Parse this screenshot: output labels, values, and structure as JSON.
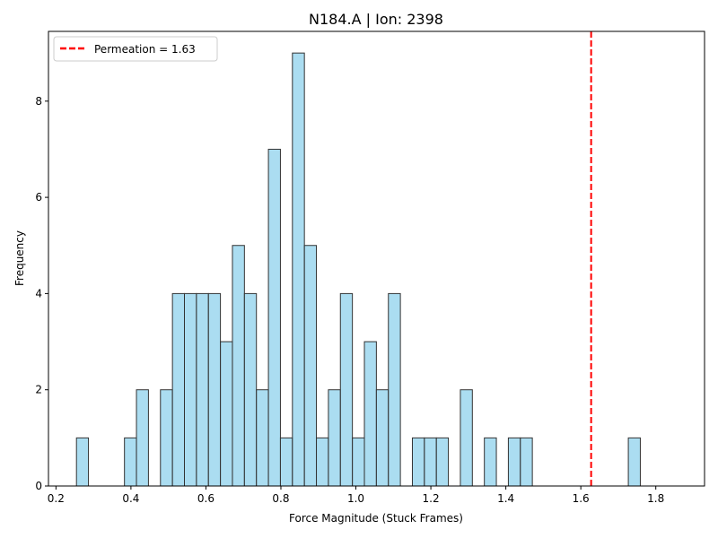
{
  "chart_data": {
    "type": "bar",
    "title": "N184.A | Ion: 2398",
    "xlabel": "Force Magnitude (Stuck Frames)",
    "ylabel": "Frequency",
    "xlim": [
      0.18,
      1.93
    ],
    "ylim": [
      0,
      9.45
    ],
    "xticks": [
      0.2,
      0.4,
      0.6,
      0.8,
      1.0,
      1.2,
      1.4,
      1.6,
      1.8
    ],
    "xtick_labels": [
      "0.2",
      "0.4",
      "0.6",
      "0.8",
      "1.0",
      "1.2",
      "1.4",
      "1.6",
      "1.8"
    ],
    "yticks": [
      0,
      2,
      4,
      6,
      8
    ],
    "ytick_labels": [
      "0",
      "2",
      "4",
      "6",
      "8"
    ],
    "bins": {
      "start": 0.2547,
      "width": 0.032,
      "counts": [
        1,
        0,
        0,
        0,
        1,
        2,
        0,
        2,
        4,
        4,
        4,
        4,
        3,
        5,
        4,
        2,
        7,
        1,
        9,
        5,
        1,
        2,
        4,
        1,
        3,
        2,
        4,
        0,
        1,
        1,
        1,
        0,
        2,
        0,
        1,
        0,
        1,
        1,
        0,
        0,
        0,
        0,
        0,
        0,
        0,
        0,
        1
      ]
    },
    "bar_color": "#87CEEB",
    "bar_edge_color": "#333333",
    "vline": {
      "x": 1.6275,
      "color": "#ff0000",
      "style": "dashed"
    },
    "legend": {
      "label": "Permeation = 1.63",
      "position": "top-left"
    },
    "grid": false
  }
}
